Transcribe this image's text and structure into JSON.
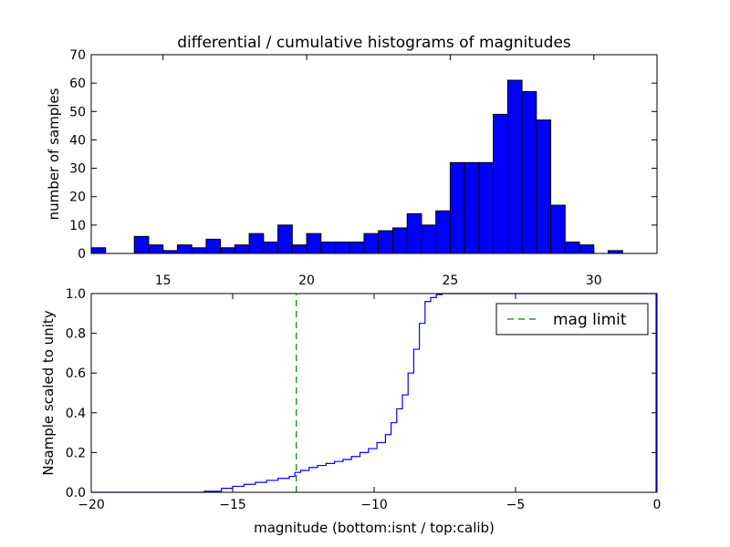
{
  "title": "differential / cumulative histograms of magnitudes",
  "chart_data": [
    {
      "type": "bar",
      "title": "differential / cumulative histograms of magnitudes",
      "ylabel": "number of samples",
      "xlabel": "",
      "xlim": [
        12.5,
        32.2
      ],
      "ylim": [
        0,
        70
      ],
      "x_ticks": [
        15,
        20,
        25,
        30
      ],
      "y_ticks": [
        0,
        10,
        20,
        30,
        40,
        50,
        60,
        70
      ],
      "bin_edges": [
        12.5,
        13.0,
        13.5,
        14.0,
        14.5,
        15.0,
        15.5,
        16.0,
        16.5,
        17.0,
        17.5,
        18.0,
        18.5,
        19.0,
        19.5,
        20.0,
        20.5,
        21.0,
        21.5,
        22.0,
        22.5,
        23.0,
        23.5,
        24.0,
        24.5,
        25.0,
        25.5,
        26.0,
        26.5,
        27.0,
        27.5,
        28.0,
        28.5,
        29.0,
        29.5,
        30.0,
        30.5,
        31.0,
        31.5,
        32.0
      ],
      "values": [
        2,
        0,
        0,
        6,
        3,
        1,
        3,
        2,
        5,
        2,
        3,
        7,
        4,
        10,
        3,
        7,
        4,
        4,
        4,
        7,
        8,
        9,
        14,
        10,
        15,
        32,
        32,
        32,
        49,
        61,
        57,
        47,
        17,
        4,
        3,
        0,
        1,
        0,
        0
      ],
      "bar_color": "#0000ff",
      "grid": false
    },
    {
      "type": "line",
      "xlabel": "magnitude (bottom:isnt / top:calib)",
      "ylabel": "Nsample scaled to unity",
      "xlim": [
        -20,
        0
      ],
      "ylim": [
        0,
        1.0
      ],
      "x_ticks": [
        -20,
        -15,
        -10,
        -5,
        0
      ],
      "y_ticks": [
        0.0,
        0.2,
        0.4,
        0.6,
        0.8,
        1.0
      ],
      "series": [
        {
          "name": "",
          "color": "#0000ff",
          "style": "steps",
          "x": [
            -20,
            -16.0,
            -15.4,
            -15.0,
            -14.6,
            -14.2,
            -13.8,
            -13.4,
            -13.0,
            -12.8,
            -12.6,
            -12.3,
            -12.0,
            -11.7,
            -11.4,
            -11.1,
            -10.8,
            -10.5,
            -10.2,
            -9.9,
            -9.6,
            -9.4,
            -9.2,
            -9.0,
            -8.8,
            -8.6,
            -8.4,
            -8.2,
            -8.0,
            -7.8,
            -7.6,
            0
          ],
          "y": [
            0.0,
            0.005,
            0.02,
            0.03,
            0.04,
            0.05,
            0.06,
            0.07,
            0.08,
            0.1,
            0.11,
            0.125,
            0.135,
            0.145,
            0.155,
            0.165,
            0.18,
            0.2,
            0.22,
            0.25,
            0.29,
            0.35,
            0.42,
            0.49,
            0.6,
            0.72,
            0.85,
            0.96,
            0.98,
            0.995,
            1.0,
            1.0
          ]
        }
      ],
      "vlines": [
        {
          "x": -12.75,
          "color": "#008000",
          "style": "dashed"
        }
      ],
      "legend": {
        "label": "mag limit",
        "placement": "top-right"
      },
      "grid": false
    }
  ]
}
